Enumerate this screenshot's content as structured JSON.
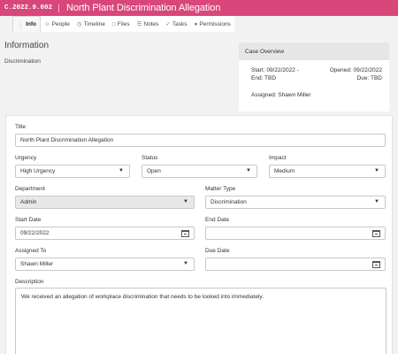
{
  "header": {
    "case_id": "C.2022.9.002",
    "title": "North Plant Discrimination Allegation",
    "color": "#d9467a"
  },
  "tabs": [
    {
      "label": "Info",
      "icon": "info-icon"
    },
    {
      "label": "People",
      "icon": "people-icon"
    },
    {
      "label": "Timeline",
      "icon": "clock-icon"
    },
    {
      "label": "Files",
      "icon": "file-icon"
    },
    {
      "label": "Notes",
      "icon": "notes-icon"
    },
    {
      "label": "Tasks",
      "icon": "check-icon"
    },
    {
      "label": "Permissions",
      "icon": "lock-icon"
    }
  ],
  "info": {
    "title": "Information",
    "subtitle": "Discrimination"
  },
  "overview": {
    "heading": "Case Overview",
    "start": "Start: 09/22/2022 -",
    "end": "End: TBD",
    "opened": "Opened: 09/22/2022",
    "due": "Due: TBD",
    "assigned": "Assigned: Shawn Miller"
  },
  "form": {
    "title_label": "Title",
    "title_value": "North Plant Discrimination Allegation",
    "urgency_label": "Urgency",
    "urgency_value": "High Urgency",
    "status_label": "Status",
    "status_value": "Open",
    "impact_label": "Impact",
    "impact_value": "Medium",
    "department_label": "Department",
    "department_value": "Admin",
    "matter_type_label": "Matter Type",
    "matter_type_value": "Discrimination",
    "start_date_label": "Start Date",
    "start_date_value": "09/22/2022",
    "end_date_label": "End Date",
    "end_date_value": "",
    "assigned_label": "Assigned To",
    "assigned_value": "Shawn Miller",
    "due_date_label": "Due Date",
    "due_date_value": "",
    "description_label": "Description",
    "description_value": "We received an allegation of workplace discrimination that needs to be looked into immediately."
  }
}
